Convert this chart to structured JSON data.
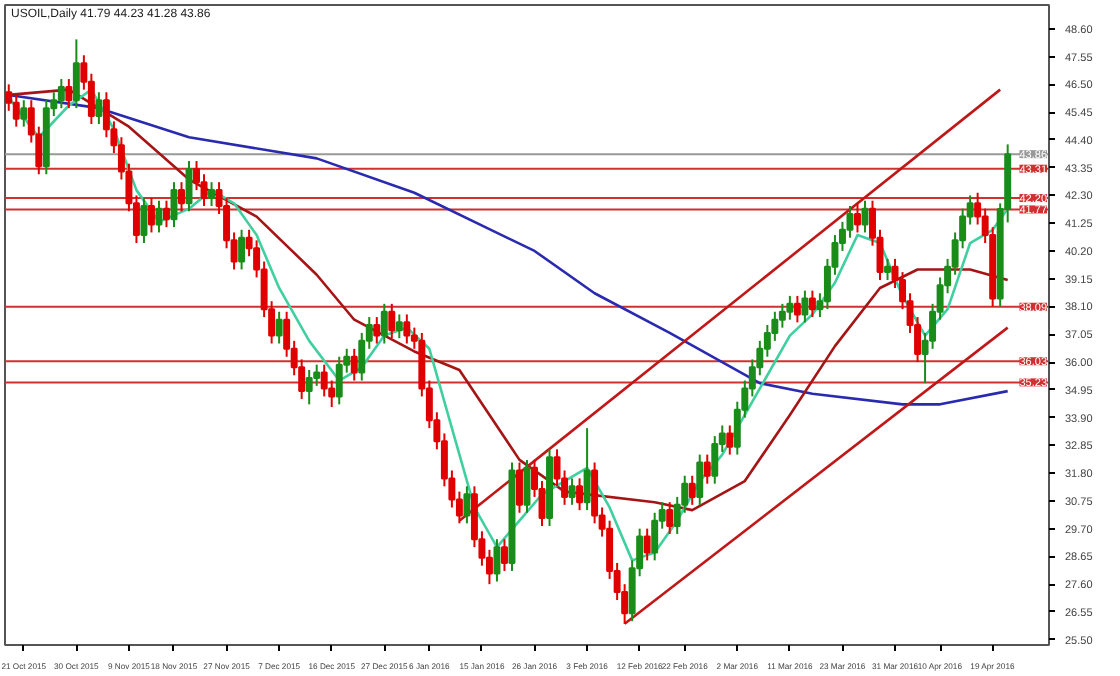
{
  "chart_data": {
    "type": "candlestick",
    "title": "USOIL,Daily 41.79 44.23 41.28 43.86",
    "categories": [
      null,
      null,
      "21 Oct 2015",
      null,
      null,
      null,
      null,
      null,
      null,
      "30 Oct 2015",
      null,
      null,
      null,
      null,
      null,
      null,
      "9 Nov 2015",
      null,
      null,
      null,
      null,
      null,
      "18 Nov 2015",
      null,
      null,
      null,
      null,
      null,
      null,
      "27 Nov 2015",
      null,
      null,
      null,
      null,
      null,
      null,
      "7 Dec 2015",
      null,
      null,
      null,
      null,
      null,
      null,
      "16 Dec 2015",
      null,
      null,
      null,
      null,
      null,
      null,
      "27 Dec 2015",
      null,
      null,
      null,
      null,
      null,
      "6 Jan 2016",
      null,
      null,
      null,
      null,
      null,
      null,
      "15 Jan 2016",
      null,
      null,
      null,
      null,
      null,
      null,
      "26 Jan 2016",
      null,
      null,
      null,
      null,
      null,
      null,
      "3 Feb 2016",
      null,
      null,
      null,
      null,
      null,
      null,
      "12 Feb 2016",
      null,
      null,
      null,
      null,
      null,
      "22 Feb 2016",
      null,
      null,
      null,
      null,
      null,
      null,
      "2 Mar 2016",
      null,
      null,
      null,
      null,
      null,
      null,
      "11 Mar 2016",
      null,
      null,
      null,
      null,
      null,
      null,
      "23 Mar 2016",
      null,
      null,
      null,
      null,
      null,
      null,
      "31 Mar 2016",
      null,
      null,
      null,
      null,
      null,
      "10 Apr 2016",
      null,
      null,
      null,
      null,
      null,
      null,
      "19 Apr 2016",
      null,
      null
    ],
    "ohlc": [
      [
        46.2,
        46.5,
        45.5,
        45.8
      ],
      [
        45.8,
        46.1,
        44.9,
        45.2
      ],
      [
        45.2,
        45.9,
        44.9,
        45.6
      ],
      [
        45.6,
        45.9,
        44.3,
        44.6
      ],
      [
        44.6,
        44.9,
        43.1,
        43.4
      ],
      [
        43.4,
        45.9,
        43.1,
        45.6
      ],
      [
        45.6,
        46.2,
        45.3,
        45.9
      ],
      [
        45.9,
        46.7,
        45.6,
        46.4
      ],
      [
        46.4,
        46.7,
        45.6,
        45.9
      ],
      [
        45.9,
        48.2,
        45.6,
        47.3
      ],
      [
        47.3,
        47.6,
        46.3,
        46.6
      ],
      [
        46.6,
        46.9,
        45.0,
        45.3
      ],
      [
        45.3,
        46.2,
        45.0,
        45.9
      ],
      [
        45.9,
        46.2,
        44.5,
        44.8
      ],
      [
        44.8,
        45.1,
        43.9,
        44.2
      ],
      [
        44.2,
        44.5,
        42.9,
        43.2
      ],
      [
        43.2,
        43.5,
        41.7,
        42.0
      ],
      [
        42.0,
        42.3,
        40.5,
        40.8
      ],
      [
        40.8,
        42.2,
        40.5,
        41.9
      ],
      [
        41.9,
        42.2,
        40.9,
        41.2
      ],
      [
        41.2,
        42.1,
        40.9,
        41.8
      ],
      [
        41.8,
        42.1,
        41.1,
        41.4
      ],
      [
        41.4,
        42.8,
        41.1,
        42.5
      ],
      [
        42.5,
        42.8,
        41.7,
        42.0
      ],
      [
        42.0,
        43.6,
        41.7,
        43.3
      ],
      [
        43.3,
        43.6,
        42.5,
        42.8
      ],
      [
        42.8,
        43.1,
        41.9,
        42.2
      ],
      [
        42.2,
        42.8,
        41.9,
        42.5
      ],
      [
        42.5,
        42.8,
        41.6,
        41.9
      ],
      [
        41.9,
        42.2,
        40.3,
        40.6
      ],
      [
        40.6,
        40.9,
        39.5,
        39.8
      ],
      [
        39.8,
        41.0,
        39.5,
        40.7
      ],
      [
        40.7,
        41.0,
        40.0,
        40.3
      ],
      [
        40.3,
        40.6,
        39.2,
        39.5
      ],
      [
        39.5,
        39.8,
        37.7,
        38.0
      ],
      [
        38.0,
        38.3,
        36.7,
        37.0
      ],
      [
        37.0,
        37.9,
        36.7,
        37.6
      ],
      [
        37.6,
        37.9,
        36.2,
        36.5
      ],
      [
        36.5,
        36.8,
        35.5,
        35.8
      ],
      [
        35.8,
        36.1,
        34.6,
        34.9
      ],
      [
        34.9,
        35.7,
        34.4,
        35.4
      ],
      [
        35.4,
        35.9,
        35.1,
        35.6
      ],
      [
        35.6,
        35.9,
        34.7,
        35.0
      ],
      [
        35.0,
        35.3,
        34.3,
        34.7
      ],
      [
        34.7,
        36.2,
        34.4,
        35.9
      ],
      [
        35.9,
        36.5,
        35.6,
        36.2
      ],
      [
        36.2,
        36.5,
        35.3,
        35.6
      ],
      [
        35.6,
        37.1,
        35.3,
        36.8
      ],
      [
        36.8,
        37.7,
        36.5,
        37.4
      ],
      [
        37.4,
        37.7,
        36.7,
        37.0
      ],
      [
        37.0,
        38.2,
        36.7,
        37.9
      ],
      [
        37.9,
        38.2,
        36.9,
        37.2
      ],
      [
        37.2,
        37.8,
        36.9,
        37.5
      ],
      [
        37.5,
        37.8,
        36.7,
        37.0
      ],
      [
        37.0,
        37.3,
        36.5,
        36.8
      ],
      [
        36.8,
        37.1,
        34.7,
        35.0
      ],
      [
        35.0,
        35.3,
        33.5,
        33.8
      ],
      [
        33.8,
        34.1,
        32.7,
        33.0
      ],
      [
        33.0,
        33.3,
        31.3,
        31.6
      ],
      [
        31.6,
        31.9,
        30.5,
        30.8
      ],
      [
        30.8,
        31.1,
        29.9,
        30.2
      ],
      [
        30.2,
        31.3,
        29.9,
        31.0
      ],
      [
        31.0,
        31.3,
        29.0,
        29.3
      ],
      [
        29.3,
        29.6,
        28.3,
        28.6
      ],
      [
        28.6,
        28.9,
        27.6,
        28.0
      ],
      [
        28.0,
        29.3,
        27.7,
        29.0
      ],
      [
        29.0,
        29.3,
        28.1,
        28.4
      ],
      [
        28.4,
        32.2,
        28.1,
        31.9
      ],
      [
        31.9,
        32.2,
        30.3,
        30.6
      ],
      [
        30.6,
        32.3,
        30.3,
        32.0
      ],
      [
        32.0,
        32.3,
        30.9,
        31.2
      ],
      [
        31.2,
        31.5,
        29.8,
        30.1
      ],
      [
        30.1,
        32.7,
        29.8,
        32.4
      ],
      [
        32.4,
        32.7,
        31.3,
        31.6
      ],
      [
        31.6,
        31.9,
        30.6,
        30.9
      ],
      [
        30.9,
        31.6,
        30.6,
        31.3
      ],
      [
        31.3,
        31.6,
        30.4,
        30.7
      ],
      [
        30.7,
        33.5,
        30.4,
        31.9
      ],
      [
        31.9,
        32.2,
        29.9,
        30.2
      ],
      [
        30.2,
        30.5,
        29.4,
        29.7
      ],
      [
        29.7,
        30.0,
        27.8,
        28.1
      ],
      [
        28.1,
        28.4,
        27.0,
        27.3
      ],
      [
        27.3,
        27.6,
        26.1,
        26.5
      ],
      [
        26.5,
        28.5,
        26.2,
        28.2
      ],
      [
        28.2,
        29.7,
        27.9,
        29.4
      ],
      [
        29.4,
        29.7,
        28.5,
        28.8
      ],
      [
        28.8,
        30.3,
        28.5,
        30.0
      ],
      [
        30.0,
        30.7,
        29.7,
        30.4
      ],
      [
        30.4,
        30.7,
        29.5,
        29.8
      ],
      [
        29.8,
        30.9,
        29.5,
        30.6
      ],
      [
        30.6,
        31.7,
        30.3,
        31.4
      ],
      [
        31.4,
        31.7,
        30.6,
        30.9
      ],
      [
        30.9,
        32.5,
        30.6,
        32.2
      ],
      [
        32.2,
        32.5,
        31.4,
        31.7
      ],
      [
        31.7,
        33.2,
        31.4,
        32.9
      ],
      [
        32.9,
        33.6,
        32.6,
        33.3
      ],
      [
        33.3,
        33.6,
        32.5,
        32.8
      ],
      [
        32.8,
        34.5,
        32.5,
        34.2
      ],
      [
        34.2,
        35.3,
        33.9,
        35.0
      ],
      [
        35.0,
        36.1,
        34.7,
        35.8
      ],
      [
        35.8,
        36.8,
        35.5,
        36.5
      ],
      [
        36.5,
        37.4,
        36.2,
        37.1
      ],
      [
        37.1,
        37.9,
        36.8,
        37.6
      ],
      [
        37.6,
        38.2,
        37.3,
        37.9
      ],
      [
        37.9,
        38.5,
        37.6,
        38.2
      ],
      [
        38.2,
        38.5,
        37.5,
        37.8
      ],
      [
        37.8,
        38.7,
        37.5,
        38.4
      ],
      [
        38.4,
        38.7,
        37.7,
        38.0
      ],
      [
        38.0,
        38.6,
        37.7,
        38.3
      ],
      [
        38.3,
        39.9,
        38.0,
        39.6
      ],
      [
        39.6,
        40.8,
        39.3,
        40.5
      ],
      [
        40.5,
        41.3,
        40.2,
        41.0
      ],
      [
        41.0,
        41.9,
        40.7,
        41.6
      ],
      [
        41.6,
        42.0,
        40.9,
        41.2
      ],
      [
        41.2,
        42.1,
        40.9,
        41.8
      ],
      [
        41.8,
        42.1,
        40.4,
        40.7
      ],
      [
        40.7,
        41.0,
        39.1,
        39.4
      ],
      [
        39.4,
        39.9,
        39.1,
        39.6
      ],
      [
        39.6,
        39.9,
        38.8,
        39.1
      ],
      [
        39.1,
        39.4,
        38.0,
        38.3
      ],
      [
        38.3,
        38.6,
        37.1,
        37.4
      ],
      [
        37.4,
        37.7,
        36.0,
        36.3
      ],
      [
        36.3,
        37.1,
        35.2,
        36.8
      ],
      [
        36.8,
        38.2,
        36.5,
        37.9
      ],
      [
        37.9,
        39.2,
        37.6,
        38.9
      ],
      [
        38.9,
        39.9,
        38.6,
        39.6
      ],
      [
        39.6,
        40.9,
        39.3,
        40.6
      ],
      [
        40.6,
        41.8,
        40.3,
        41.5
      ],
      [
        41.5,
        42.3,
        41.2,
        42.0
      ],
      [
        42.0,
        42.4,
        41.2,
        41.5
      ],
      [
        41.5,
        41.8,
        40.5,
        40.8
      ],
      [
        40.8,
        41.1,
        38.1,
        38.4
      ],
      [
        38.4,
        42.0,
        38.1,
        41.79
      ],
      [
        41.79,
        44.23,
        41.28,
        43.86
      ]
    ],
    "colors": [
      "#e00000",
      "#e00000",
      "#1a8c1a",
      "#e00000",
      "#e00000",
      "#1a8c1a",
      "#1a8c1a",
      "#1a8c1a",
      "#e00000",
      "#1a8c1a",
      "#e00000",
      "#e00000",
      "#1a8c1a",
      "#e00000",
      "#e00000",
      "#e00000",
      "#e00000",
      "#e00000",
      "#1a8c1a",
      "#e00000",
      "#1a8c1a",
      "#e00000",
      "#1a8c1a",
      "#e00000",
      "#1a8c1a",
      "#e00000",
      "#e00000",
      "#1a8c1a",
      "#e00000",
      "#e00000",
      "#e00000",
      "#1a8c1a",
      "#e00000",
      "#e00000",
      "#e00000",
      "#e00000",
      "#1a8c1a",
      "#e00000",
      "#e00000",
      "#e00000",
      "#1a8c1a",
      "#1a8c1a",
      "#e00000",
      "#e00000",
      "#1a8c1a",
      "#1a8c1a",
      "#e00000",
      "#1a8c1a",
      "#1a8c1a",
      "#e00000",
      "#1a8c1a",
      "#e00000",
      "#1a8c1a",
      "#e00000",
      "#e00000",
      "#e00000",
      "#e00000",
      "#e00000",
      "#e00000",
      "#e00000",
      "#e00000",
      "#1a8c1a",
      "#e00000",
      "#e00000",
      "#e00000",
      "#1a8c1a",
      "#e00000",
      "#1a8c1a",
      "#e00000",
      "#1a8c1a",
      "#e00000",
      "#e00000",
      "#1a8c1a",
      "#e00000",
      "#e00000",
      "#1a8c1a",
      "#e00000",
      "#1a8c1a",
      "#e00000",
      "#e00000",
      "#e00000",
      "#e00000",
      "#e00000",
      "#1a8c1a",
      "#1a8c1a",
      "#e00000",
      "#1a8c1a",
      "#1a8c1a",
      "#e00000",
      "#1a8c1a",
      "#1a8c1a",
      "#e00000",
      "#1a8c1a",
      "#e00000",
      "#1a8c1a",
      "#1a8c1a",
      "#e00000",
      "#1a8c1a",
      "#1a8c1a",
      "#1a8c1a",
      "#1a8c1a",
      "#1a8c1a",
      "#1a8c1a",
      "#1a8c1a",
      "#1a8c1a",
      "#e00000",
      "#1a8c1a",
      "#e00000",
      "#1a8c1a",
      "#1a8c1a",
      "#1a8c1a",
      "#1a8c1a",
      "#1a8c1a",
      "#e00000",
      "#1a8c1a",
      "#e00000",
      "#e00000",
      "#1a8c1a",
      "#e00000",
      "#e00000",
      "#e00000",
      "#e00000",
      "#1a8c1a",
      "#1a8c1a",
      "#1a8c1a",
      "#1a8c1a",
      "#1a8c1a",
      "#1a8c1a",
      "#1a8c1a",
      "#e00000",
      "#e00000",
      "#e00000",
      "#1a8c1a",
      "#1a8c1a"
    ],
    "series": [
      {
        "type": "line",
        "color": "#2a2ab0",
        "values": [
          46.1,
          null,
          null,
          null,
          null,
          null,
          null,
          null,
          null,
          null,
          null,
          null,
          45.6,
          null,
          null,
          null,
          null,
          null,
          null,
          null,
          null,
          null,
          null,
          null,
          44.5,
          null,
          null,
          null,
          null,
          null,
          null,
          null,
          null,
          null,
          null,
          null,
          null,
          null,
          null,
          null,
          null,
          43.7,
          null,
          null,
          null,
          null,
          null,
          null,
          null,
          null,
          null,
          null,
          null,
          null,
          42.4,
          null,
          null,
          null,
          null,
          null,
          null,
          null,
          null,
          null,
          null,
          null,
          null,
          null,
          null,
          null,
          40.2,
          null,
          null,
          null,
          null,
          null,
          null,
          null,
          38.6,
          null,
          null,
          null,
          null,
          null,
          null,
          null,
          null,
          null,
          37.1,
          null,
          null,
          null,
          null,
          null,
          null,
          null,
          null,
          null,
          null,
          null,
          35.2,
          null,
          null,
          null,
          null,
          null,
          null,
          34.8,
          null,
          null,
          null,
          null,
          null,
          null,
          null,
          null,
          null,
          null,
          null,
          34.4,
          null,
          null,
          null,
          null,
          34.4,
          null,
          null,
          null,
          null,
          null,
          null,
          null,
          null,
          34.9
        ]
      },
      {
        "type": "line",
        "color": "#a51515",
        "values": [
          46.1,
          null,
          null,
          null,
          null,
          null,
          null,
          null,
          46.3,
          null,
          null,
          null,
          null,
          null,
          null,
          null,
          44.9,
          null,
          null,
          null,
          null,
          null,
          null,
          null,
          42.9,
          null,
          null,
          null,
          null,
          null,
          null,
          null,
          null,
          41.5,
          null,
          null,
          null,
          null,
          null,
          null,
          null,
          39.3,
          null,
          null,
          null,
          null,
          37.6,
          null,
          null,
          null,
          null,
          null,
          null,
          null,
          36.4,
          null,
          null,
          null,
          null,
          null,
          35.7,
          null,
          null,
          null,
          null,
          null,
          null,
          null,
          32.3,
          null,
          null,
          null,
          null,
          null,
          31.1,
          null,
          null,
          null,
          null,
          null,
          null,
          null,
          null,
          null,
          null,
          null,
          30.7,
          null,
          null,
          null,
          null,
          30.4,
          null,
          null,
          null,
          null,
          null,
          null,
          31.5,
          null,
          null,
          null,
          null,
          null,
          34.0,
          null,
          null,
          null,
          null,
          null,
          36.6,
          null,
          null,
          null,
          null,
          null,
          38.8,
          null,
          null,
          null,
          null,
          39.5,
          null,
          null,
          null,
          null,
          null,
          null,
          39.5,
          null,
          null,
          null,
          null,
          39.1
        ]
      },
      {
        "type": "line",
        "color": "#40d0a0",
        "values": [
          46.0,
          null,
          null,
          null,
          44.5,
          null,
          null,
          null,
          45.7,
          null,
          null,
          46.3,
          null,
          null,
          44.8,
          null,
          null,
          42.5,
          null,
          null,
          41.3,
          null,
          null,
          null,
          41.8,
          null,
          null,
          42.5,
          null,
          null,
          42.0,
          null,
          null,
          40.8,
          null,
          null,
          38.8,
          null,
          null,
          null,
          36.8,
          null,
          null,
          null,
          35.3,
          null,
          null,
          35.8,
          null,
          null,
          37.0,
          null,
          null,
          37.3,
          null,
          null,
          36.5,
          null,
          null,
          33.5,
          null,
          null,
          30.5,
          null,
          null,
          29.0,
          null,
          null,
          30.0,
          null,
          null,
          31.0,
          null,
          null,
          31.5,
          null,
          null,
          32.0,
          null,
          null,
          30.5,
          null,
          null,
          28.5,
          null,
          null,
          28.8,
          null,
          null,
          30.0,
          null,
          null,
          31.5,
          null,
          null,
          32.5,
          null,
          null,
          34.0,
          null,
          null,
          35.5,
          null,
          null,
          37.0,
          null,
          null,
          37.8,
          null,
          null,
          39.0,
          null,
          null,
          40.8,
          null,
          null,
          40.5,
          null,
          null,
          38.5,
          null,
          null,
          37.0,
          null,
          null,
          38.0,
          null,
          null,
          40.5,
          null,
          null,
          41.0,
          null,
          41.8
        ]
      },
      {
        "type": "line",
        "color": "#c01818",
        "values": [
          null,
          null,
          null,
          null,
          null,
          null,
          null,
          null,
          null,
          null,
          null,
          null,
          null,
          null,
          null,
          null,
          null,
          null,
          null,
          null,
          null,
          null,
          null,
          null,
          null,
          null,
          null,
          null,
          null,
          null,
          null,
          null,
          null,
          null,
          null,
          null,
          null,
          null,
          null,
          null,
          null,
          null,
          null,
          null,
          null,
          null,
          null,
          null,
          null,
          null,
          null,
          null,
          null,
          null,
          null,
          null,
          null,
          null,
          null,
          null,
          30.0,
          null,
          null,
          null,
          null,
          null,
          null,
          null,
          null,
          null,
          null,
          null,
          null,
          null,
          null,
          null,
          null,
          null,
          null,
          null,
          null,
          null,
          null,
          null,
          null,
          null,
          null,
          null,
          null,
          null,
          null,
          null,
          null,
          null,
          null,
          null,
          null,
          null,
          null,
          null,
          null,
          null,
          null,
          null,
          null,
          null,
          null,
          null,
          null,
          null,
          null,
          null,
          null,
          null,
          null,
          null,
          null,
          null,
          null,
          null,
          null,
          null,
          null,
          null,
          null,
          null,
          null,
          null,
          null,
          null,
          null,
          null,
          46.3,
          null
        ]
      },
      {
        "type": "line",
        "color": "#c01818",
        "values": [
          null,
          null,
          null,
          null,
          null,
          null,
          null,
          null,
          null,
          null,
          null,
          null,
          null,
          null,
          null,
          null,
          null,
          null,
          null,
          null,
          null,
          null,
          null,
          null,
          null,
          null,
          null,
          null,
          null,
          null,
          null,
          null,
          null,
          null,
          null,
          null,
          null,
          null,
          null,
          null,
          null,
          null,
          null,
          null,
          null,
          null,
          null,
          null,
          null,
          null,
          null,
          null,
          null,
          null,
          null,
          null,
          null,
          null,
          null,
          null,
          null,
          null,
          null,
          null,
          null,
          null,
          null,
          null,
          null,
          null,
          null,
          null,
          null,
          null,
          null,
          null,
          null,
          null,
          null,
          null,
          null,
          null,
          26.1,
          null,
          null,
          null,
          null,
          null,
          null,
          null,
          null,
          null,
          null,
          null,
          null,
          null,
          null,
          null,
          null,
          null,
          null,
          null,
          null,
          null,
          null,
          null,
          null,
          null,
          null,
          null,
          null,
          null,
          null,
          null,
          null,
          null,
          null,
          null,
          null,
          null,
          null,
          null,
          null,
          null,
          null,
          null,
          null,
          null,
          null,
          null,
          null,
          null,
          null,
          37.3
        ]
      }
    ],
    "ref_lines": [
      {
        "axis": "y",
        "value": 43.86,
        "label": "43.86",
        "color": "#999999"
      },
      {
        "axis": "y",
        "value": 43.31,
        "label": "43.31",
        "color": "#d03030"
      },
      {
        "axis": "y",
        "value": 42.2,
        "label": "42.20",
        "color": "#d03030"
      },
      {
        "axis": "y",
        "value": 41.77,
        "label": "41.77",
        "color": "#d03030"
      },
      {
        "axis": "y",
        "value": 38.09,
        "label": "38.09",
        "color": "#d03030"
      },
      {
        "axis": "y",
        "value": 36.03,
        "label": "36.03",
        "color": "#d03030"
      },
      {
        "axis": "y",
        "value": 35.23,
        "label": "35.23",
        "color": "#d03030"
      }
    ],
    "ylim": [
      25.3,
      49.5
    ],
    "yticks": [
      {
        "value": 25.5,
        "label": "25.50"
      },
      {
        "value": 26.55,
        "label": "26.55"
      },
      {
        "value": 27.6,
        "label": "27.60"
      },
      {
        "value": 28.65,
        "label": "28.65"
      },
      {
        "value": 29.7,
        "label": "29.70"
      },
      {
        "value": 30.75,
        "label": "30.75"
      },
      {
        "value": 31.8,
        "label": "31.80"
      },
      {
        "value": 32.85,
        "label": "32.85"
      },
      {
        "value": 33.9,
        "label": "33.90"
      },
      {
        "value": 34.95,
        "label": "34.95"
      },
      {
        "value": 36.0,
        "label": "36.00"
      },
      {
        "value": 37.05,
        "label": "37.05"
      },
      {
        "value": 38.1,
        "label": "38.10"
      },
      {
        "value": 39.15,
        "label": "39.15"
      },
      {
        "value": 40.2,
        "label": "40.20"
      },
      {
        "value": 41.25,
        "label": "41.25"
      },
      {
        "value": 42.3,
        "label": "42.30"
      },
      {
        "value": 43.35,
        "label": "43.35"
      },
      {
        "value": 44.4,
        "label": "44.40"
      },
      {
        "value": 45.45,
        "label": "45.45"
      },
      {
        "value": 46.5,
        "label": "46.50"
      },
      {
        "value": 47.55,
        "label": "47.55"
      },
      {
        "value": 48.6,
        "label": "48.60"
      }
    ],
    "grid": false
  }
}
